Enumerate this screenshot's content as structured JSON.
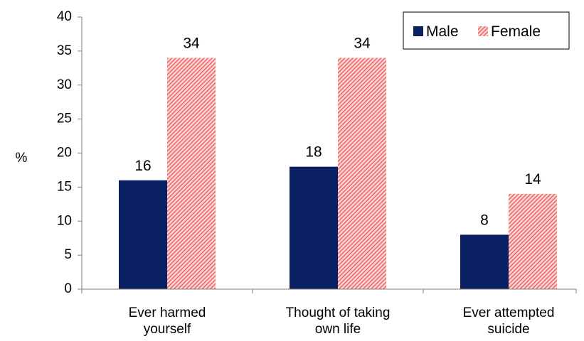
{
  "chart_data": {
    "type": "bar",
    "title": "",
    "xlabel": "",
    "ylabel": "%",
    "ylim": [
      0,
      40
    ],
    "ytick_step": 5,
    "grid": false,
    "legend_position": "top-right",
    "categories": [
      [
        "Ever harmed",
        "yourself"
      ],
      [
        "Thought of taking",
        "own life"
      ],
      [
        "Ever attempted",
        "suicide"
      ]
    ],
    "series": [
      {
        "name": "Male",
        "values": [
          16,
          18,
          8
        ],
        "color": "#0b1f63",
        "pattern": "solid"
      },
      {
        "name": "Female",
        "values": [
          34,
          34,
          14
        ],
        "color": "#f25c5c",
        "pattern": "diagonal-hatch"
      }
    ]
  }
}
